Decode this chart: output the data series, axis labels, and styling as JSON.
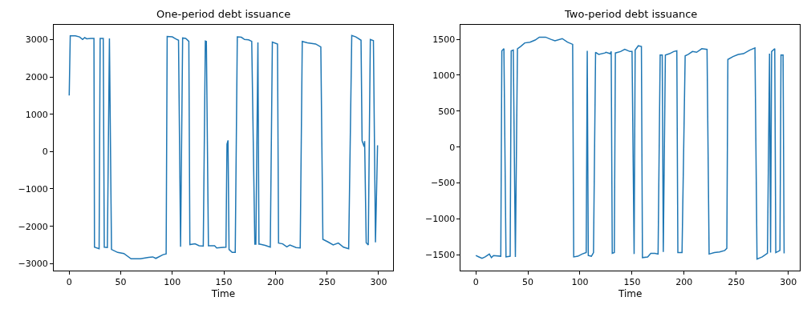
{
  "chart_data": [
    {
      "type": "line",
      "title": "One-period debt issuance",
      "xlabel": "Time",
      "color": "#1f77b4",
      "xlim": [
        -15,
        314
      ],
      "ylim": [
        -3186,
        3393
      ],
      "xticks": [
        0,
        50,
        100,
        150,
        200,
        250,
        300
      ],
      "yticks": [
        -3000,
        -2000,
        -1000,
        0,
        1000,
        2000,
        3000
      ],
      "x": [
        0,
        1,
        6,
        10,
        13,
        15,
        17,
        21,
        24,
        24.5,
        29,
        30,
        33,
        34,
        37,
        39,
        41,
        47,
        53,
        60,
        69,
        77,
        81,
        84,
        91,
        94,
        95,
        100,
        103,
        106,
        108,
        110,
        113,
        116,
        117,
        122,
        126,
        130,
        132,
        133,
        135,
        141,
        143,
        147,
        152,
        153,
        154,
        155,
        158,
        161,
        163,
        167,
        170,
        174,
        177,
        180,
        181,
        183,
        184,
        185,
        190,
        195,
        197,
        202,
        203,
        207,
        211,
        214,
        220,
        224,
        226,
        231,
        239,
        244,
        246,
        251,
        256,
        261,
        266,
        271,
        274,
        278,
        283,
        284,
        286,
        286.5,
        288,
        290,
        292,
        295,
        297,
        299
      ],
      "values": [
        1500,
        3100,
        3100,
        3070,
        3000,
        3050,
        3020,
        3030,
        3030,
        -2560,
        -2600,
        3030,
        3030,
        -2560,
        -2570,
        3030,
        -2620,
        -2700,
        -2730,
        -2870,
        -2870,
        -2830,
        -2820,
        -2860,
        -2760,
        -2740,
        3080,
        3070,
        3020,
        2980,
        -2550,
        3040,
        3030,
        2950,
        -2490,
        -2470,
        -2520,
        -2530,
        2960,
        2950,
        -2520,
        -2520,
        -2580,
        -2570,
        -2560,
        200,
        300,
        -2620,
        -2700,
        -2700,
        3070,
        3060,
        3000,
        2990,
        2950,
        -2480,
        -2480,
        2920,
        -2480,
        -2480,
        -2510,
        -2560,
        2930,
        2880,
        -2450,
        -2470,
        -2550,
        -2500,
        -2570,
        -2580,
        2950,
        2910,
        2880,
        2800,
        -2350,
        -2420,
        -2500,
        -2450,
        -2560,
        -2600,
        3110,
        3070,
        2980,
        290,
        130,
        280,
        -2440,
        -2500,
        3000,
        2970,
        -2430,
        170
      ]
    },
    {
      "type": "line",
      "title": "Two-period debt issuance",
      "xlabel": "Time",
      "color": "#1f77b4",
      "xlim": [
        -14.4,
        311
      ],
      "ylim": [
        -1720,
        1702
      ],
      "xticks": [
        0,
        50,
        100,
        150,
        200,
        250,
        300
      ],
      "yticks": [
        -1500,
        -1000,
        -500,
        0,
        500,
        1000,
        1500
      ],
      "x": [
        0,
        3,
        6,
        9,
        13,
        15,
        17,
        24,
        25,
        27,
        29,
        33,
        34,
        36,
        38,
        40,
        43,
        47,
        52,
        57,
        61,
        67,
        72,
        76,
        83,
        88,
        93,
        94,
        98,
        102,
        106,
        107,
        108,
        111,
        113,
        115,
        118,
        124,
        125,
        129,
        130,
        131,
        133,
        134,
        139,
        143,
        148,
        150,
        152,
        153,
        156,
        159,
        160,
        165,
        168,
        172,
        175,
        177,
        179,
        180,
        182,
        186,
        190,
        193,
        194,
        198,
        201,
        204,
        208,
        212,
        217,
        222,
        224,
        229,
        234,
        239,
        241,
        242,
        247,
        252,
        257,
        263,
        268,
        270,
        275,
        280,
        282,
        283,
        284,
        287,
        288,
        292,
        293,
        295,
        296
      ],
      "values": [
        -1510,
        -1530,
        -1550,
        -1530,
        -1490,
        -1540,
        -1510,
        -1520,
        1340,
        1370,
        -1530,
        -1520,
        1340,
        1350,
        -1530,
        1370,
        1400,
        1450,
        1460,
        1490,
        1530,
        1530,
        1500,
        1480,
        1510,
        1460,
        1430,
        -1530,
        -1520,
        -1490,
        -1470,
        1340,
        -1510,
        -1520,
        -1470,
        1320,
        1290,
        1310,
        1320,
        1300,
        1330,
        -1480,
        -1470,
        1310,
        1330,
        1360,
        1330,
        1330,
        -1490,
        1350,
        1410,
        1400,
        -1540,
        -1530,
        -1480,
        -1480,
        -1490,
        1280,
        1280,
        -1460,
        1280,
        1300,
        1330,
        1340,
        -1470,
        -1470,
        1270,
        1290,
        1330,
        1320,
        1370,
        1360,
        -1490,
        -1470,
        -1460,
        -1440,
        -1410,
        1220,
        1260,
        1290,
        1300,
        1350,
        1380,
        -1560,
        -1530,
        -1480,
        1300,
        -1470,
        1330,
        1370,
        -1470,
        -1440,
        1280,
        1280,
        -1480
      ]
    }
  ]
}
